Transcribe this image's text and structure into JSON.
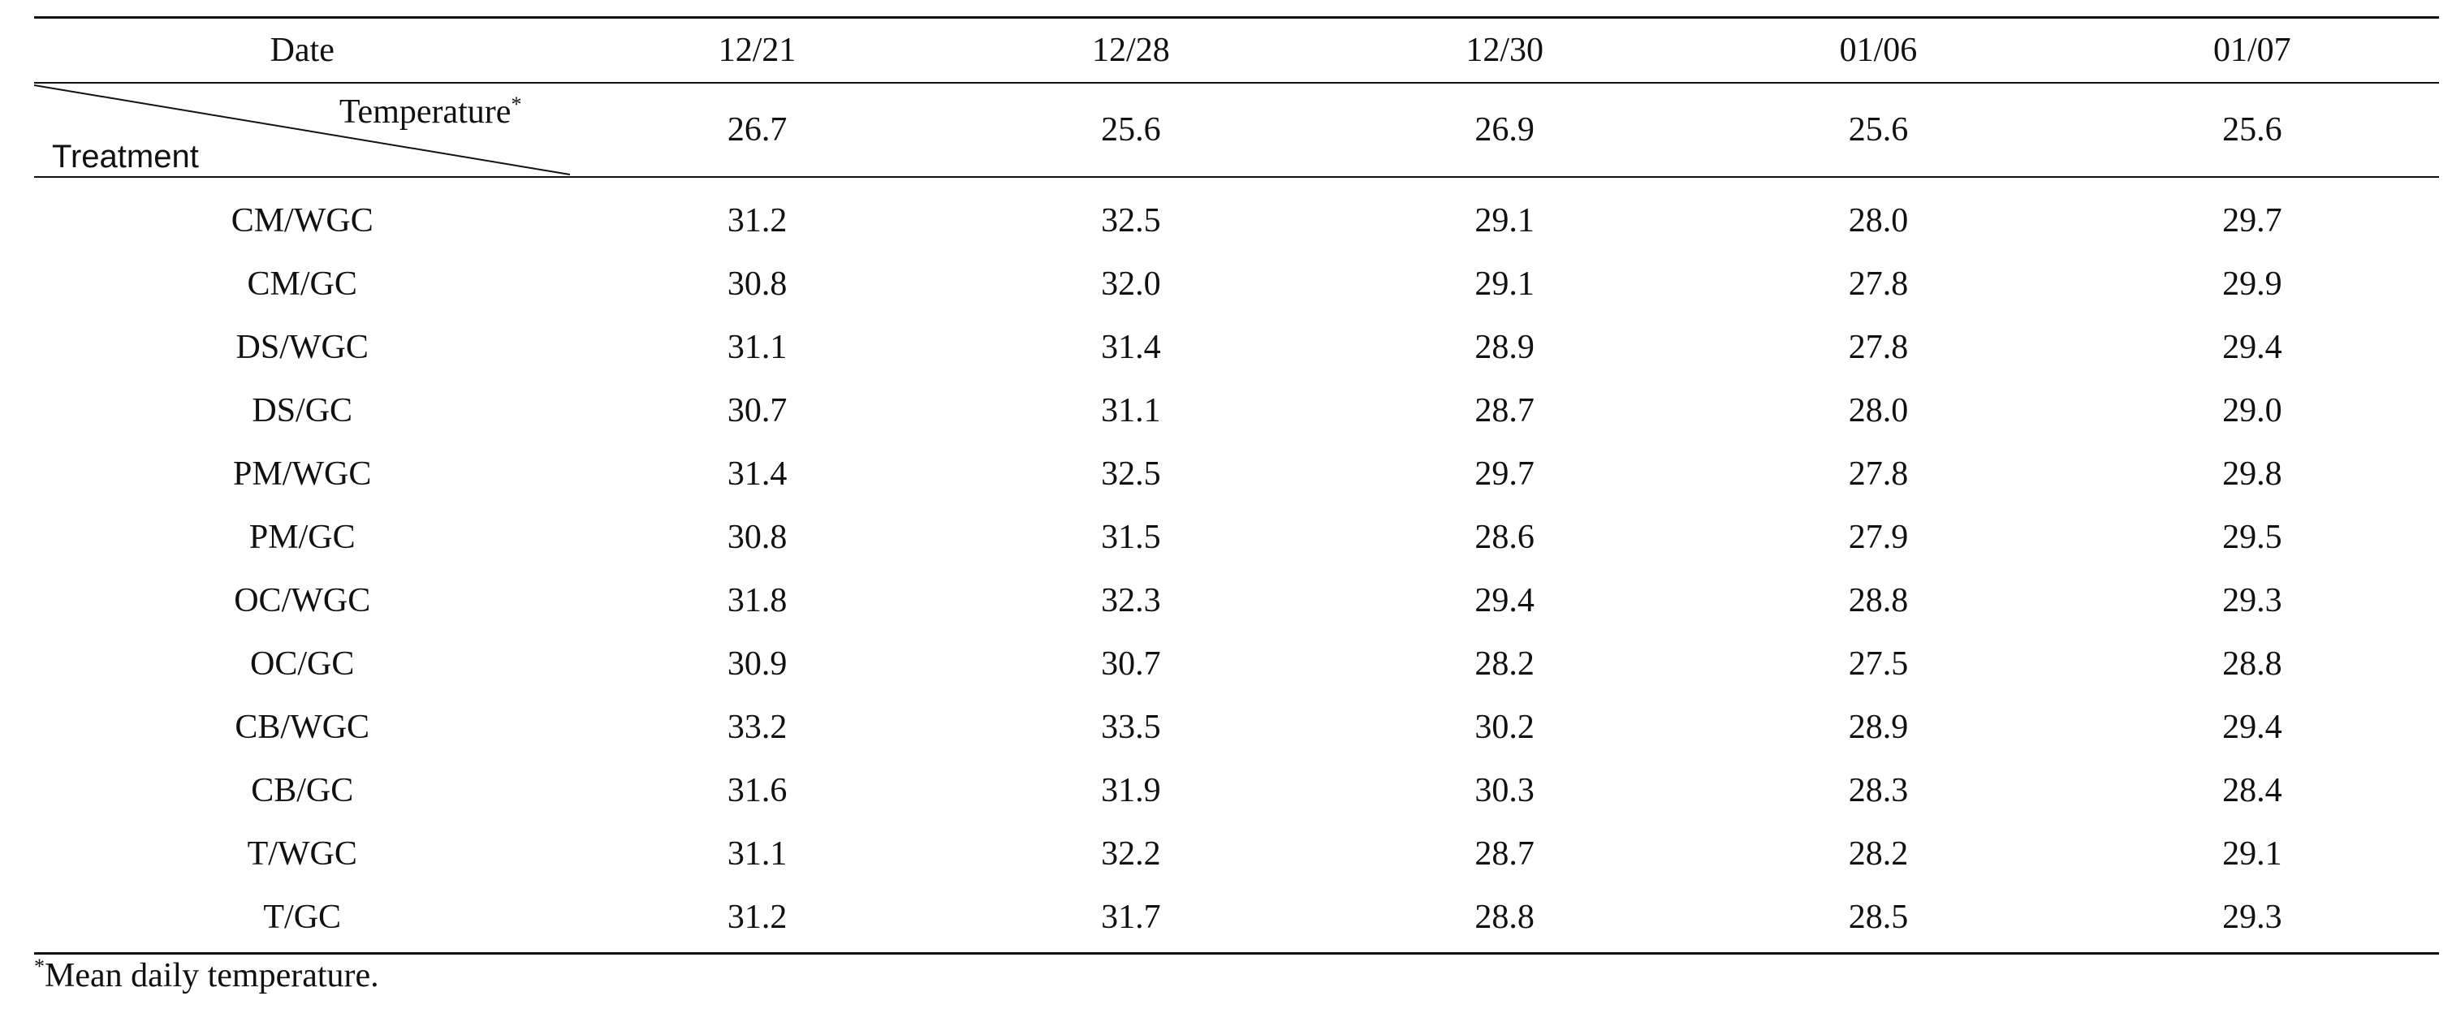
{
  "table": {
    "header": {
      "date_label": "Date",
      "dates": [
        "12/21",
        "12/28",
        "12/30",
        "01/06",
        "01/07"
      ]
    },
    "diagonal_header": {
      "top_label": "Temperature",
      "top_marker": "*",
      "bottom_label": "Treatment"
    },
    "temperature_row": [
      "26.7",
      "25.6",
      "26.9",
      "25.6",
      "25.6"
    ],
    "rows": [
      {
        "treatment": "CM/WGC",
        "values": [
          "31.2",
          "32.5",
          "29.1",
          "28.0",
          "29.7"
        ]
      },
      {
        "treatment": "CM/GC",
        "values": [
          "30.8",
          "32.0",
          "29.1",
          "27.8",
          "29.9"
        ]
      },
      {
        "treatment": "DS/WGC",
        "values": [
          "31.1",
          "31.4",
          "28.9",
          "27.8",
          "29.4"
        ]
      },
      {
        "treatment": "DS/GC",
        "values": [
          "30.7",
          "31.1",
          "28.7",
          "28.0",
          "29.0"
        ]
      },
      {
        "treatment": "PM/WGC",
        "values": [
          "31.4",
          "32.5",
          "29.7",
          "27.8",
          "29.8"
        ]
      },
      {
        "treatment": "PM/GC",
        "values": [
          "30.8",
          "31.5",
          "28.6",
          "27.9",
          "29.5"
        ]
      },
      {
        "treatment": "OC/WGC",
        "values": [
          "31.8",
          "32.3",
          "29.4",
          "28.8",
          "29.3"
        ]
      },
      {
        "treatment": "OC/GC",
        "values": [
          "30.9",
          "30.7",
          "28.2",
          "27.5",
          "28.8"
        ]
      },
      {
        "treatment": "CB/WGC",
        "values": [
          "33.2",
          "33.5",
          "30.2",
          "28.9",
          "29.4"
        ]
      },
      {
        "treatment": "CB/GC",
        "values": [
          "31.6",
          "31.9",
          "30.3",
          "28.3",
          "28.4"
        ]
      },
      {
        "treatment": "T/WGC",
        "values": [
          "31.1",
          "32.2",
          "28.7",
          "28.2",
          "29.1"
        ]
      },
      {
        "treatment": "T/GC",
        "values": [
          "31.2",
          "31.7",
          "28.8",
          "28.5",
          "29.3"
        ]
      }
    ]
  },
  "footnote": {
    "marker": "*",
    "text": "Mean daily temperature."
  }
}
